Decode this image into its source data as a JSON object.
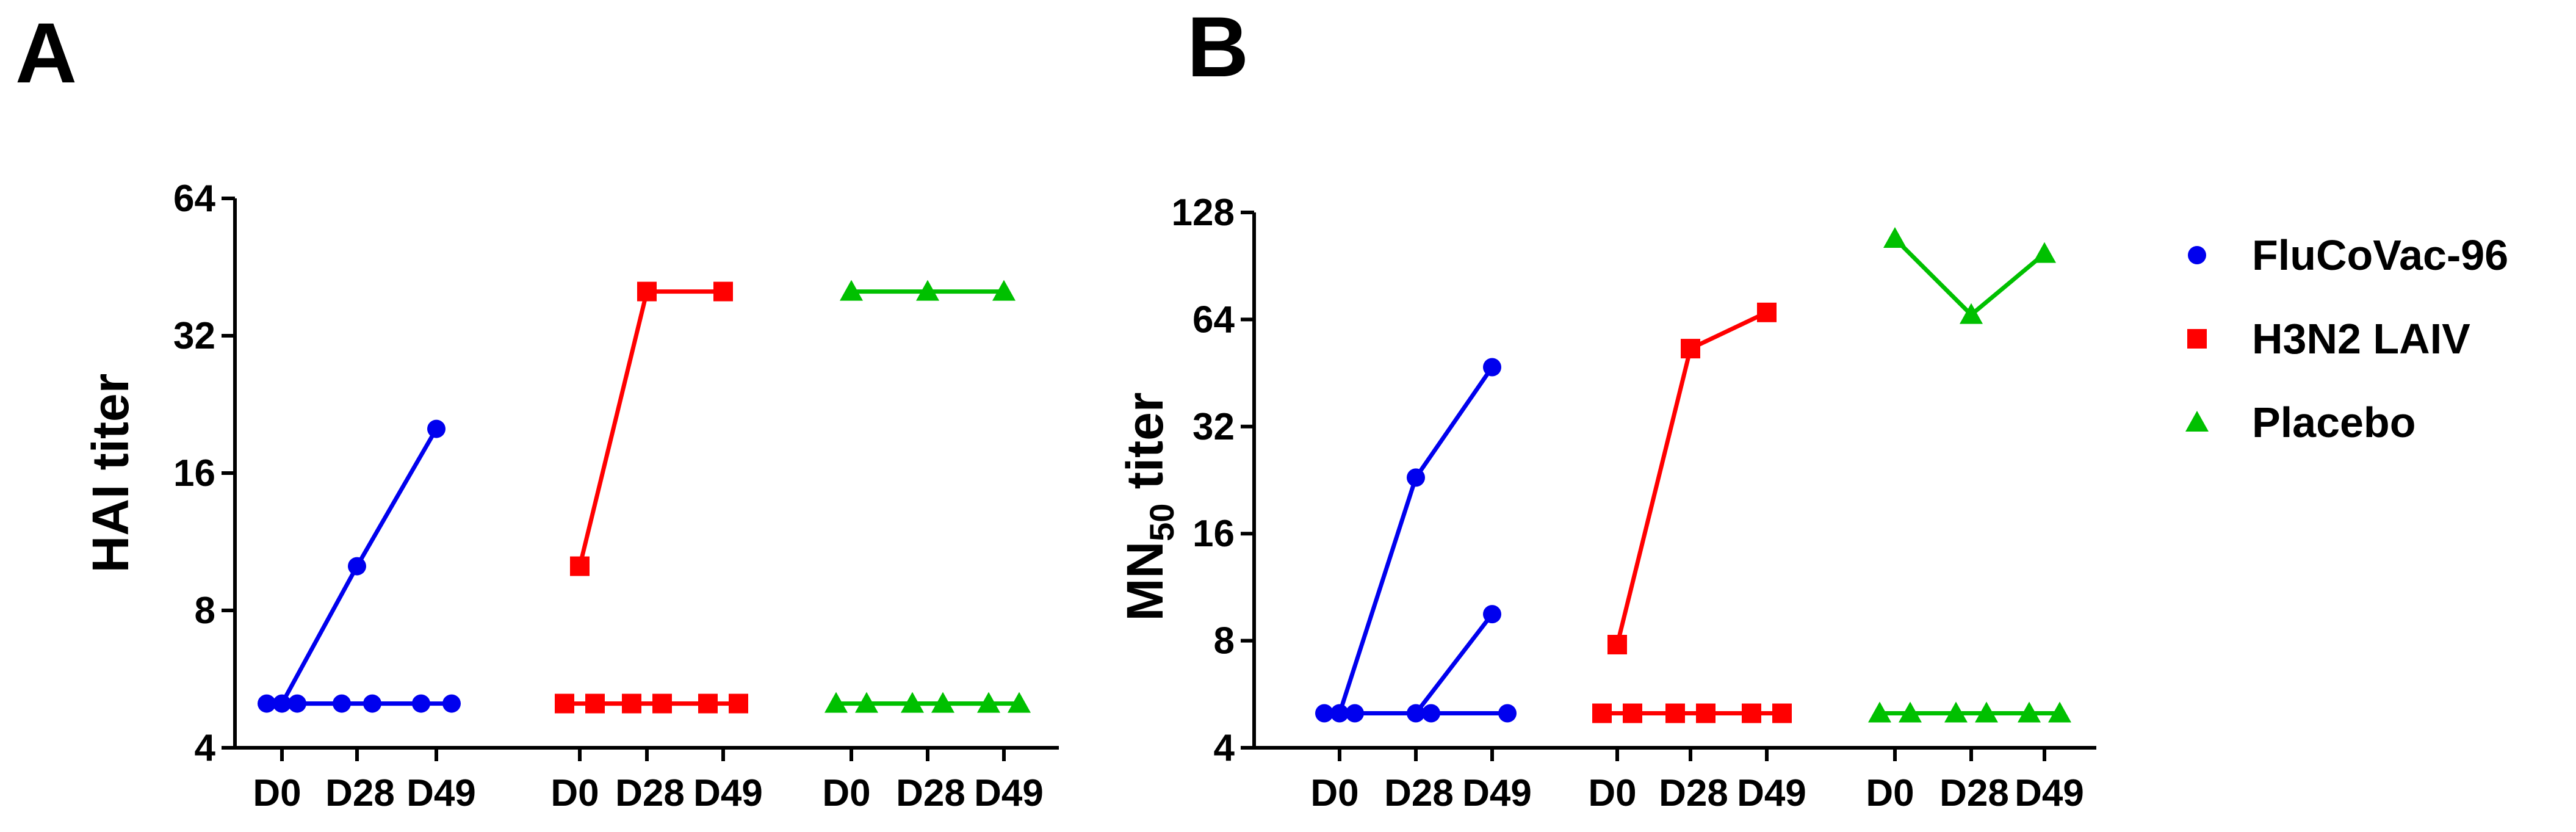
{
  "chart_data": [
    {
      "panel": "A",
      "type": "line",
      "ylabel": "HAI titer",
      "yscale": "log2",
      "ylim": [
        4,
        64
      ],
      "yticks": [
        "4",
        "8",
        "16",
        "32",
        "64"
      ],
      "groups": [
        {
          "name": "FluCoVac-96",
          "color": "#0000ee",
          "marker": "circle",
          "xticks": [
            "D0",
            "D28",
            "D49"
          ],
          "lines": [
            {
              "x": [
                "D0",
                "D28",
                "D49"
              ],
              "values": [
                5,
                10,
                20
              ]
            },
            {
              "x": [
                "D0",
                "D28",
                "D49"
              ],
              "values": [
                5,
                5,
                5
              ]
            },
            {
              "x": [
                "D0",
                "D28",
                "D49"
              ],
              "values": [
                5,
                5,
                5
              ]
            }
          ]
        },
        {
          "name": "H3N2 LAIV",
          "color": "#ff0000",
          "marker": "square",
          "xticks": [
            "D0",
            "D28",
            "D49"
          ],
          "lines": [
            {
              "x": [
                "D0",
                "D28",
                "D49"
              ],
              "values": [
                10,
                40,
                40
              ]
            },
            {
              "x": [
                "D0",
                "D28",
                "D49"
              ],
              "values": [
                5,
                5,
                5
              ]
            },
            {
              "x": [
                "D0",
                "D28",
                "D49"
              ],
              "values": [
                5,
                5,
                5
              ]
            }
          ]
        },
        {
          "name": "Placebo",
          "color": "#00c000",
          "marker": "triangle",
          "xticks": [
            "D0",
            "D28",
            "D49"
          ],
          "lines": [
            {
              "x": [
                "D0",
                "D28",
                "D49"
              ],
              "values": [
                40,
                40,
                40
              ]
            },
            {
              "x": [
                "D0",
                "D28",
                "D49"
              ],
              "values": [
                5,
                5,
                5
              ]
            },
            {
              "x": [
                "D0",
                "D28",
                "D49"
              ],
              "values": [
                5,
                5,
                5
              ]
            }
          ]
        }
      ]
    },
    {
      "panel": "B",
      "type": "line",
      "ylabel": "MN",
      "ylabel_sub": "50",
      "ylabel_suffix": " titer",
      "yscale": "log2",
      "ylim": [
        4,
        128
      ],
      "yticks": [
        "4",
        "8",
        "16",
        "32",
        "64",
        "128"
      ],
      "groups": [
        {
          "name": "FluCoVac-96",
          "color": "#0000ee",
          "marker": "circle",
          "xticks": [
            "D0",
            "D28",
            "D49"
          ],
          "lines": [
            {
              "x": [
                "D0",
                "D28",
                "D49"
              ],
              "values": [
                5,
                23,
                47
              ]
            },
            {
              "x": [
                "D0",
                "D28",
                "D49"
              ],
              "values": [
                5,
                5,
                9.5
              ]
            },
            {
              "x": [
                "D0",
                "D28",
                "D49"
              ],
              "values": [
                5,
                5,
                5
              ]
            }
          ]
        },
        {
          "name": "H3N2 LAIV",
          "color": "#ff0000",
          "marker": "square",
          "xticks": [
            "D0",
            "D28",
            "D49"
          ],
          "lines": [
            {
              "x": [
                "D0",
                "D28",
                "D49"
              ],
              "values": [
                7.8,
                53,
                67
              ]
            },
            {
              "x": [
                "D0",
                "D28",
                "D49"
              ],
              "values": [
                5,
                5,
                5
              ]
            },
            {
              "x": [
                "D0",
                "D28",
                "D49"
              ],
              "values": [
                5,
                5,
                5
              ]
            }
          ]
        },
        {
          "name": "Placebo",
          "color": "#00c000",
          "marker": "triangle",
          "xticks": [
            "D0",
            "D28",
            "D49"
          ],
          "lines": [
            {
              "x": [
                "D0",
                "D28",
                "D49"
              ],
              "values": [
                108,
                66,
                98
              ]
            },
            {
              "x": [
                "D0",
                "D28",
                "D49"
              ],
              "values": [
                5,
                5,
                5
              ]
            },
            {
              "x": [
                "D0",
                "D28",
                "D49"
              ],
              "values": [
                5,
                5,
                5
              ]
            }
          ]
        }
      ]
    }
  ],
  "legend": {
    "placement": "right",
    "items": [
      {
        "label": "FluCoVac-96",
        "color": "#0000ee",
        "marker": "circle"
      },
      {
        "label": "H3N2 LAIV",
        "color": "#ff0000",
        "marker": "square"
      },
      {
        "label": "Placebo",
        "color": "#00c000",
        "marker": "triangle"
      }
    ]
  }
}
